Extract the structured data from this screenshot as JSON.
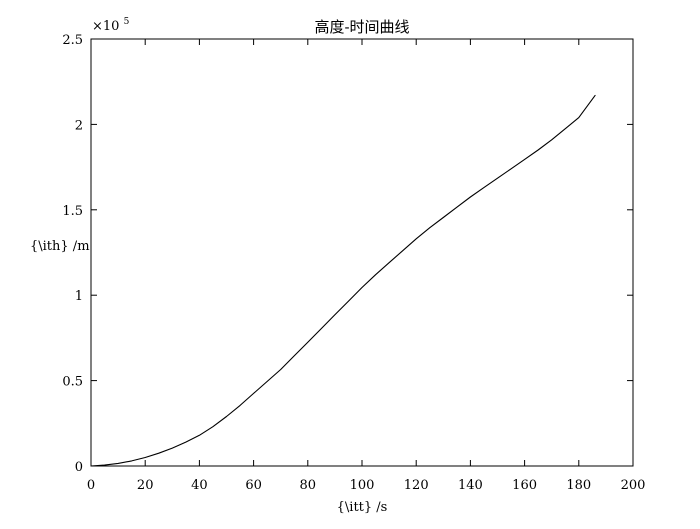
{
  "chart_data": {
    "type": "line",
    "title": "高度-时间曲线",
    "xlabel": "{\\itt} /s",
    "ylabel": "{\\ith} /m",
    "xlim": [
      0,
      200
    ],
    "ylim": [
      0,
      250000
    ],
    "xticks": [
      0,
      20,
      40,
      60,
      80,
      100,
      120,
      140,
      160,
      180,
      200
    ],
    "xtick_labels": [
      "0",
      "20",
      "40",
      "60",
      "80",
      "100",
      "120",
      "140",
      "160",
      "180",
      "200"
    ],
    "yticks": [
      0,
      50000,
      100000,
      150000,
      200000,
      250000
    ],
    "ytick_labels": [
      "0",
      "0.5",
      "1",
      "1.5",
      "2",
      "2.5"
    ],
    "y_multiplier": {
      "base": "×10",
      "exponent": "5"
    },
    "grid": false,
    "legend": "none",
    "line_color": "#000000",
    "series": [
      {
        "x": [
          0,
          5,
          10,
          15,
          20,
          25,
          30,
          35,
          40,
          45,
          50,
          55,
          60,
          65,
          70,
          75,
          80,
          85,
          90,
          95,
          100,
          105,
          110,
          115,
          120,
          125,
          130,
          135,
          140,
          145,
          150,
          155,
          160,
          165,
          170,
          175,
          180,
          186
        ],
        "y": [
          0,
          500,
          1500,
          3000,
          5000,
          7500,
          10500,
          14000,
          18000,
          23000,
          29000,
          35500,
          42500,
          49500,
          56500,
          64500,
          72500,
          80500,
          88500,
          96500,
          104500,
          112000,
          119000,
          126000,
          133000,
          139500,
          145500,
          151500,
          157500,
          163000,
          168500,
          174000,
          179500,
          185000,
          191000,
          197500,
          204000,
          217000
        ]
      }
    ]
  }
}
